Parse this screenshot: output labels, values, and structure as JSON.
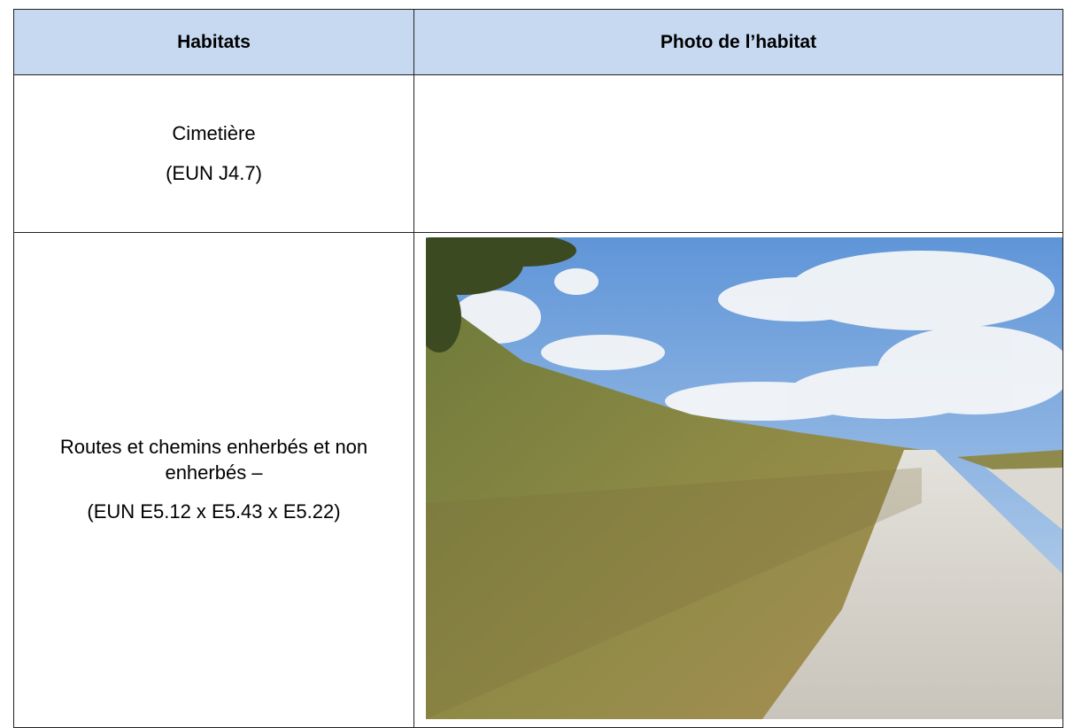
{
  "table": {
    "header": [
      "Habitats",
      "Photo de l’habitat"
    ],
    "rows": [
      {
        "habitat": "Cimetière",
        "code": "(EUN J4.7)"
      },
      {
        "habitat": "Routes et chemins enherbés et non enherbés –",
        "code": "(EUN E5.12 x E5.43 x E5.22)"
      }
    ]
  }
}
